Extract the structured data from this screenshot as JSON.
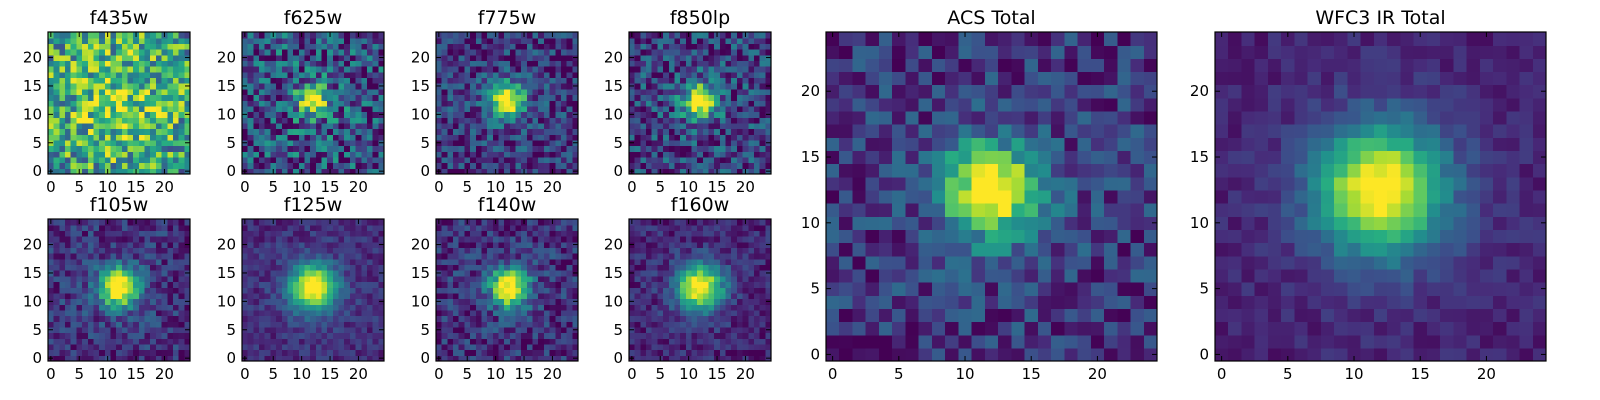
{
  "figure": {
    "background": "#ffffff",
    "colormap": "viridis",
    "pixel_grid": 25
  },
  "chart_data": [
    {
      "type": "heatmap",
      "title": "f435w",
      "x_ticks": [
        "0",
        "5",
        "10",
        "15",
        "20"
      ],
      "y_ticks": [
        "0",
        "5",
        "10",
        "15",
        "20"
      ],
      "xlim": [
        -0.5,
        24.5
      ],
      "ylim": [
        -0.5,
        24.5
      ],
      "source": {
        "cx": 12,
        "cy": 12,
        "sigma": 2.0,
        "amp": 0.0
      },
      "background_level": 0.8,
      "noise": 0.35,
      "seed": 11
    },
    {
      "type": "heatmap",
      "title": "f625w",
      "x_ticks": [
        "0",
        "5",
        "10",
        "15",
        "20"
      ],
      "y_ticks": [
        "0",
        "5",
        "10",
        "15",
        "20"
      ],
      "xlim": [
        -0.5,
        24.5
      ],
      "ylim": [
        -0.5,
        24.5
      ],
      "source": {
        "cx": 12,
        "cy": 12.5,
        "sigma": 1.9,
        "amp": 0.75
      },
      "background_level": 0.32,
      "noise": 0.32,
      "seed": 23
    },
    {
      "type": "heatmap",
      "title": "f775w",
      "x_ticks": [
        "0",
        "5",
        "10",
        "15",
        "20"
      ],
      "y_ticks": [
        "0",
        "5",
        "10",
        "15",
        "20"
      ],
      "xlim": [
        -0.5,
        24.5
      ],
      "ylim": [
        -0.5,
        24.5
      ],
      "source": {
        "cx": 12,
        "cy": 12.5,
        "sigma": 2.1,
        "amp": 0.9
      },
      "background_level": 0.22,
      "noise": 0.22,
      "seed": 37
    },
    {
      "type": "heatmap",
      "title": "f850lp",
      "x_ticks": [
        "0",
        "5",
        "10",
        "15",
        "20"
      ],
      "y_ticks": [
        "0",
        "5",
        "10",
        "15",
        "20"
      ],
      "xlim": [
        -0.5,
        24.5
      ],
      "ylim": [
        -0.5,
        24.5
      ],
      "source": {
        "cx": 12,
        "cy": 12.5,
        "sigma": 2.1,
        "amp": 0.88
      },
      "background_level": 0.24,
      "noise": 0.26,
      "seed": 41
    },
    {
      "type": "heatmap",
      "title": "f105w",
      "x_ticks": [
        "0",
        "5",
        "10",
        "15",
        "20"
      ],
      "y_ticks": [
        "0",
        "5",
        "10",
        "15",
        "20"
      ],
      "xlim": [
        -0.5,
        24.5
      ],
      "ylim": [
        -0.5,
        24.5
      ],
      "source": {
        "cx": 12,
        "cy": 12.5,
        "sigma": 2.4,
        "amp": 0.95
      },
      "background_level": 0.2,
      "noise": 0.16,
      "seed": 53
    },
    {
      "type": "heatmap",
      "title": "f125w",
      "x_ticks": [
        "0",
        "5",
        "10",
        "15",
        "20"
      ],
      "y_ticks": [
        "0",
        "5",
        "10",
        "15",
        "20"
      ],
      "xlim": [
        -0.5,
        24.5
      ],
      "ylim": [
        -0.5,
        24.5
      ],
      "source": {
        "cx": 12,
        "cy": 12.5,
        "sigma": 2.8,
        "amp": 0.95
      },
      "background_level": 0.18,
      "noise": 0.1,
      "seed": 61
    },
    {
      "type": "heatmap",
      "title": "f140w",
      "x_ticks": [
        "0",
        "5",
        "10",
        "15",
        "20"
      ],
      "y_ticks": [
        "0",
        "5",
        "10",
        "15",
        "20"
      ],
      "xlim": [
        -0.5,
        24.5
      ],
      "ylim": [
        -0.5,
        24.5
      ],
      "source": {
        "cx": 12.5,
        "cy": 12.5,
        "sigma": 2.4,
        "amp": 0.95
      },
      "background_level": 0.18,
      "noise": 0.18,
      "seed": 71
    },
    {
      "type": "heatmap",
      "title": "f160w",
      "x_ticks": [
        "0",
        "5",
        "10",
        "15",
        "20"
      ],
      "y_ticks": [
        "0",
        "5",
        "10",
        "15",
        "20"
      ],
      "xlim": [
        -0.5,
        24.5
      ],
      "ylim": [
        -0.5,
        24.5
      ],
      "source": {
        "cx": 12,
        "cy": 12.5,
        "sigma": 2.8,
        "amp": 0.95
      },
      "background_level": 0.15,
      "noise": 0.12,
      "seed": 83
    },
    {
      "type": "heatmap",
      "title": "ACS Total",
      "x_ticks": [
        "0",
        "5",
        "10",
        "15",
        "20"
      ],
      "y_ticks": [
        "0",
        "5",
        "10",
        "15",
        "20"
      ],
      "xlim": [
        -0.5,
        24.5
      ],
      "ylim": [
        -0.5,
        24.5
      ],
      "source": {
        "cx": 12,
        "cy": 12.5,
        "sigma": 2.4,
        "amp": 0.95
      },
      "background_level": 0.22,
      "noise": 0.18,
      "seed": 97
    },
    {
      "type": "heatmap",
      "title": "WFC3 IR Total",
      "x_ticks": [
        "0",
        "5",
        "10",
        "15",
        "20"
      ],
      "y_ticks": [
        "0",
        "5",
        "10",
        "15",
        "20"
      ],
      "xlim": [
        -0.5,
        24.5
      ],
      "ylim": [
        -0.5,
        24.5
      ],
      "source": {
        "cx": 12,
        "cy": 12.5,
        "sigma": 3.4,
        "amp": 0.95
      },
      "background_level": 0.14,
      "noise": 0.07,
      "seed": 109
    }
  ]
}
